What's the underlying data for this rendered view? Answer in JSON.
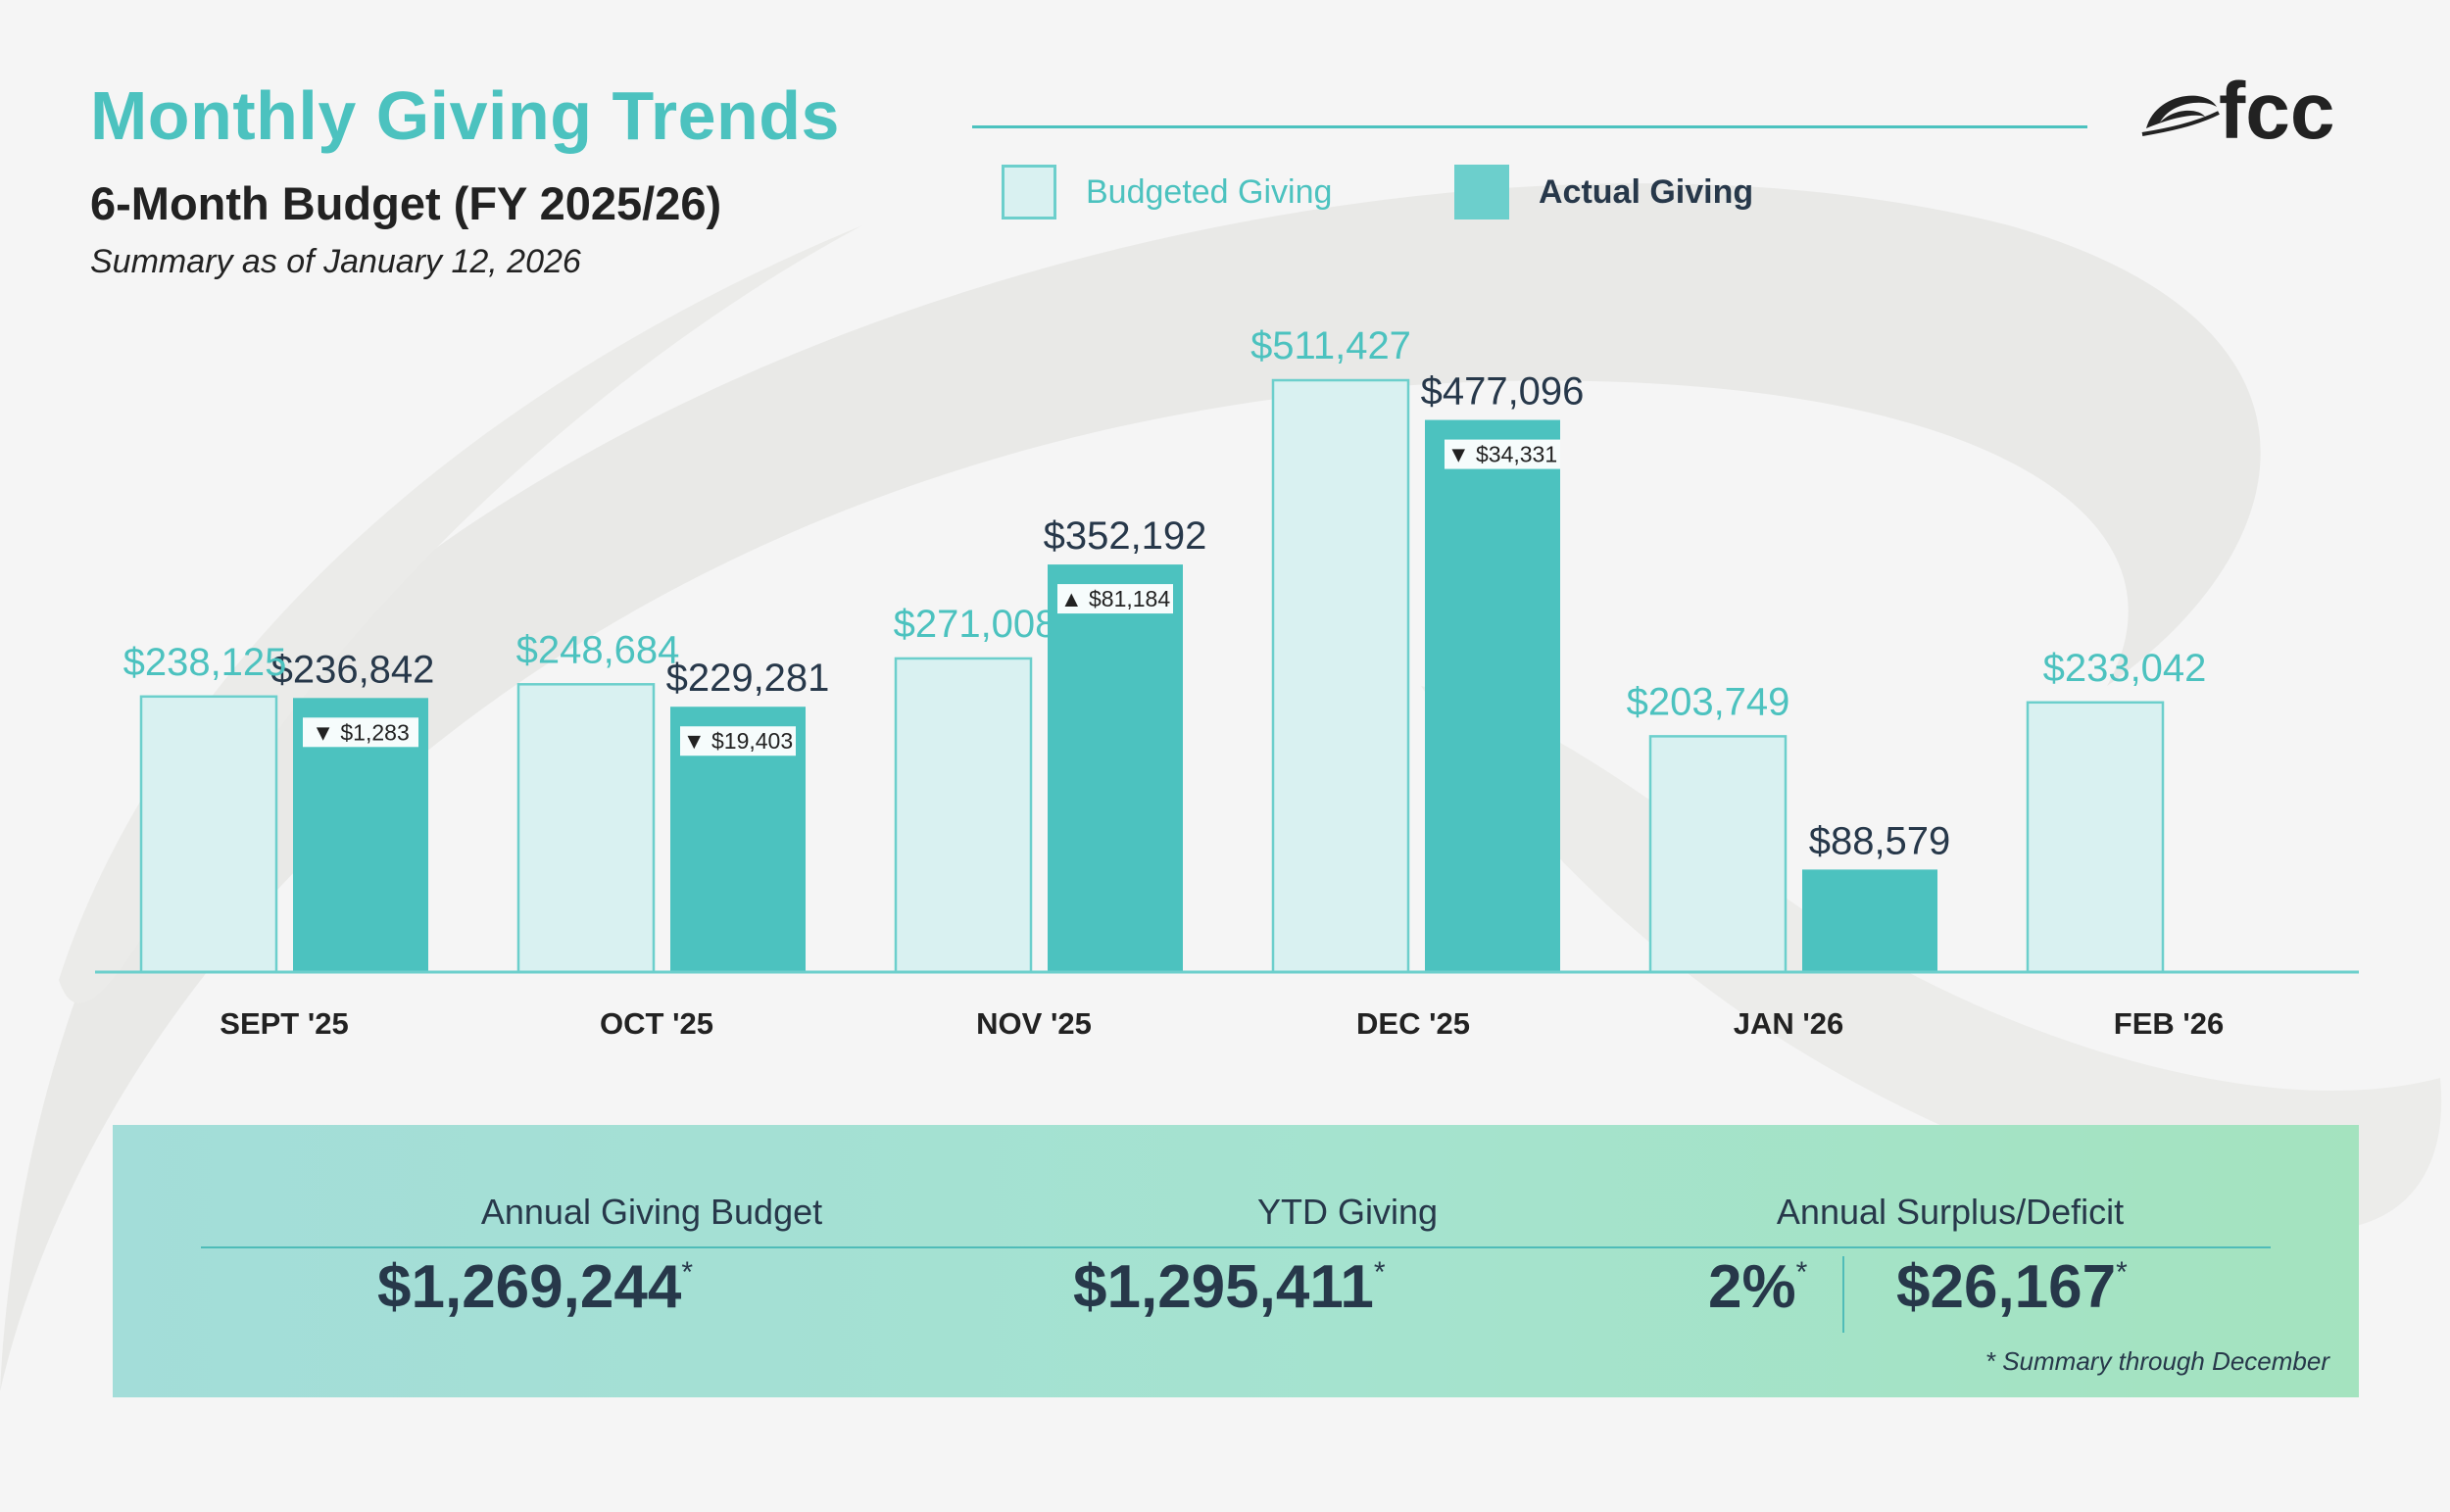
{
  "header": {
    "title": "Monthly Giving Trends",
    "subtitle": "6-Month Budget (FY 2025/26)",
    "date_line": "Summary as of January 12, 2026",
    "logo_text": "fcc"
  },
  "legend": {
    "budgeted_label": "Budgeted Giving",
    "actual_label": "Actual Giving"
  },
  "colors": {
    "budget_fill": "#d9f1f1",
    "budget_stroke": "#6ccfcc",
    "actual_fill": "#4cc2bf",
    "title_teal": "#4cc2bf",
    "dark_navy": "#27384a"
  },
  "chart_data": {
    "type": "bar",
    "title": "Monthly Giving Trends",
    "categories": [
      "SEPT '25",
      "OCT '25",
      "NOV '25",
      "DEC '25",
      "JAN '26",
      "FEB '26"
    ],
    "series": [
      {
        "name": "Budgeted Giving",
        "values": [
          238125,
          248684,
          271008,
          511427,
          203749,
          233042
        ],
        "labels": [
          "$238,125",
          "$248,684",
          "$271,008",
          "$511,427",
          "$203,749",
          "$233,042"
        ]
      },
      {
        "name": "Actual Giving",
        "values": [
          236842,
          229281,
          352192,
          477096,
          88579,
          null
        ],
        "labels": [
          "$236,842",
          "$229,281",
          "$352,192",
          "$477,096",
          "$88,579",
          null
        ]
      }
    ],
    "variances": [
      {
        "direction": "down",
        "value": 1283,
        "label": "$1,283"
      },
      {
        "direction": "down",
        "value": 19403,
        "label": "$19,403"
      },
      {
        "direction": "up",
        "value": 81184,
        "label": "$81,184"
      },
      {
        "direction": "down",
        "value": 34331,
        "label": "$34,331"
      },
      null,
      null
    ],
    "xlabel": "",
    "ylabel": "",
    "ylim": [
      0,
      525000
    ],
    "grid": false,
    "legend_position": "top-center"
  },
  "summary": {
    "budget_label": "Annual Giving Budget",
    "budget_value": "$1,269,244",
    "ytd_label": "YTD Giving",
    "ytd_value": "$1,295,411",
    "surplus_label": "Annual Surplus/Deficit",
    "surplus_percent": "2%",
    "surplus_value": "$26,167",
    "star": "*",
    "footnote": "*  Summary through December"
  }
}
